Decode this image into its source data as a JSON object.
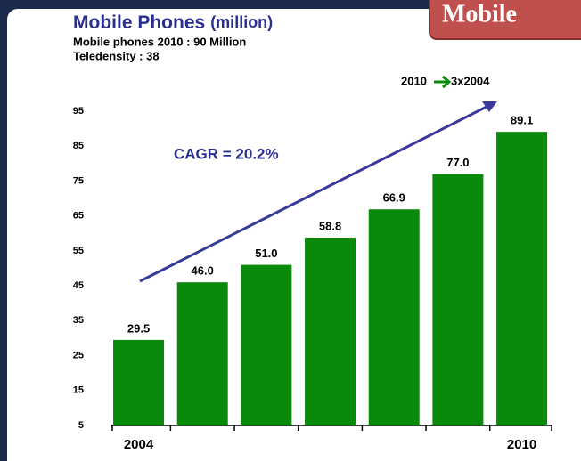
{
  "banner": "Mobile",
  "chart_data": {
    "type": "bar",
    "title": "Mobile Phones",
    "unit": "(million)",
    "subtitle": [
      "Mobile phones 2010 : 90 Million",
      "Teledensity : 38"
    ],
    "annotations": [
      "CAGR = 20.2%",
      "2010",
      "3x2004"
    ],
    "categories": [
      "2004",
      null,
      null,
      null,
      null,
      null,
      "2010"
    ],
    "values": [
      29.5,
      46.0,
      51.0,
      58.8,
      66.9,
      77.0,
      89.1
    ],
    "value_labels": [
      "29.5",
      "46.0",
      "51.0",
      "58.8",
      "66.9",
      "77.0",
      "89.1"
    ],
    "color": "#0a8a0a",
    "ylim": [
      5,
      95
    ],
    "yticks": [
      5,
      15,
      25,
      35,
      45,
      55,
      65,
      75,
      85,
      95
    ],
    "grid": false
  }
}
